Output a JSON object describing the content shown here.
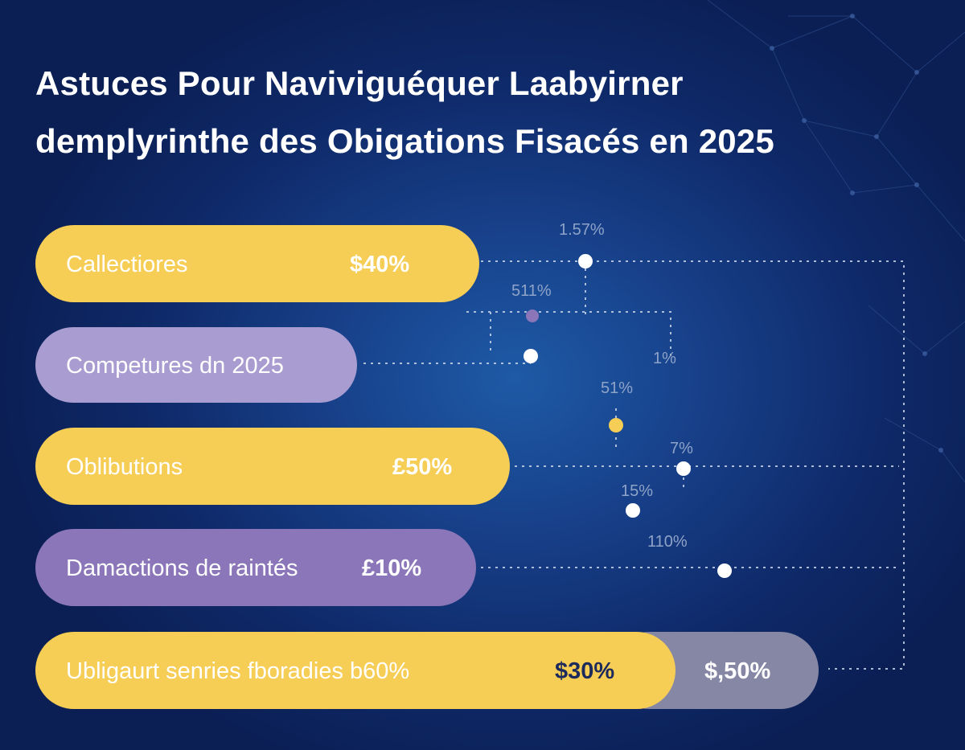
{
  "colors": {
    "yellow": "#f6cd55",
    "purple_light": "#a99cd0",
    "purple_dark": "#8a76b8",
    "grey": "#8587a5",
    "label_text_on_yellow": "#ffffff",
    "value_text_dark": "#1c2a5c",
    "connector": "#c9d5ea"
  },
  "title": {
    "line1": "Astuces Pour Naviviguéquer Laabyirner",
    "line2": "demplyrinthe des Obigations Fisacés en 2025"
  },
  "chart_data": {
    "type": "bar",
    "orientation": "horizontal",
    "bars": [
      {
        "label": "Callectiores",
        "value_label": "$40%",
        "color": "yellow"
      },
      {
        "label": "Competures dn 2025",
        "value_label": "",
        "color": "purple_light"
      },
      {
        "label": "Oblibutions",
        "value_label": "£50%",
        "color": "yellow"
      },
      {
        "label": "Damactions de raintés",
        "value_label": "£10%",
        "color": "purple_dark"
      },
      {
        "label": "Ubligaurt senries fboradies b60%",
        "segments": [
          {
            "value_label": "$30%",
            "color": "yellow"
          },
          {
            "value_label": "$,50%",
            "color": "grey"
          }
        ]
      }
    ],
    "floating_points": [
      {
        "label": "1.57%",
        "color": "white"
      },
      {
        "label": "511%",
        "color": "purple"
      },
      {
        "label": "",
        "color": "white"
      },
      {
        "label": "1%",
        "color": "none"
      },
      {
        "label": "51%",
        "color": "yellow"
      },
      {
        "label": "7%",
        "color": "white"
      },
      {
        "label": "15%",
        "color": "white"
      },
      {
        "label": "110%",
        "color": "white"
      }
    ]
  }
}
